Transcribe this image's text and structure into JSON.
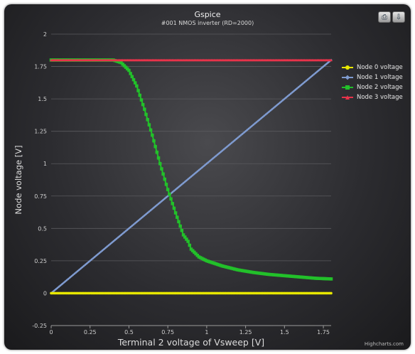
{
  "chart_data": {
    "type": "line",
    "title": "Gspice",
    "subtitle": "#001 NMOS inverter (RD=2000)",
    "xlabel": "Terminal 2 voltage of Vsweep [V]",
    "ylabel": "Node voltage [V]",
    "xlim": [
      0,
      1.8
    ],
    "ylim": [
      -0.25,
      2
    ],
    "x_ticks": [
      "0",
      "0.25",
      "0.5",
      "0.75",
      "1",
      "1.25",
      "1.5",
      "1.75"
    ],
    "y_ticks": [
      "-0.25",
      "0",
      "0.25",
      "0.5",
      "0.75",
      "1",
      "1.25",
      "1.5",
      "1.75",
      "2"
    ],
    "grid": true,
    "legend_position": "right",
    "series": [
      {
        "name": "Node 0 voltage",
        "color": "#e8e800",
        "marker": "circle",
        "x": [
          0,
          1.8
        ],
        "y": [
          0,
          0
        ]
      },
      {
        "name": "Node 1 voltage",
        "color": "#7f9bd0",
        "marker": "diamond",
        "x": [
          0,
          1.8
        ],
        "y": [
          0,
          1.8
        ]
      },
      {
        "name": "Node 2 voltage",
        "color": "#22c02a",
        "marker": "square",
        "x": [
          0,
          0.4,
          0.45,
          0.5,
          0.55,
          0.6,
          0.65,
          0.7,
          0.75,
          0.8,
          0.85,
          0.88,
          0.9,
          0.95,
          1.0,
          1.1,
          1.2,
          1.3,
          1.4,
          1.5,
          1.6,
          1.7,
          1.8
        ],
        "y": [
          1.8,
          1.8,
          1.78,
          1.72,
          1.6,
          1.42,
          1.22,
          1.0,
          0.8,
          0.62,
          0.45,
          0.4,
          0.34,
          0.28,
          0.25,
          0.21,
          0.18,
          0.16,
          0.145,
          0.135,
          0.125,
          0.115,
          0.11
        ]
      },
      {
        "name": "Node 3 voltage",
        "color": "#e8334a",
        "marker": "triangle",
        "x": [
          0,
          1.8
        ],
        "y": [
          1.8,
          1.8
        ]
      }
    ]
  },
  "export": {
    "print_icon": "print-icon",
    "download_icon": "download-icon"
  },
  "credits": "Highcharts.com"
}
